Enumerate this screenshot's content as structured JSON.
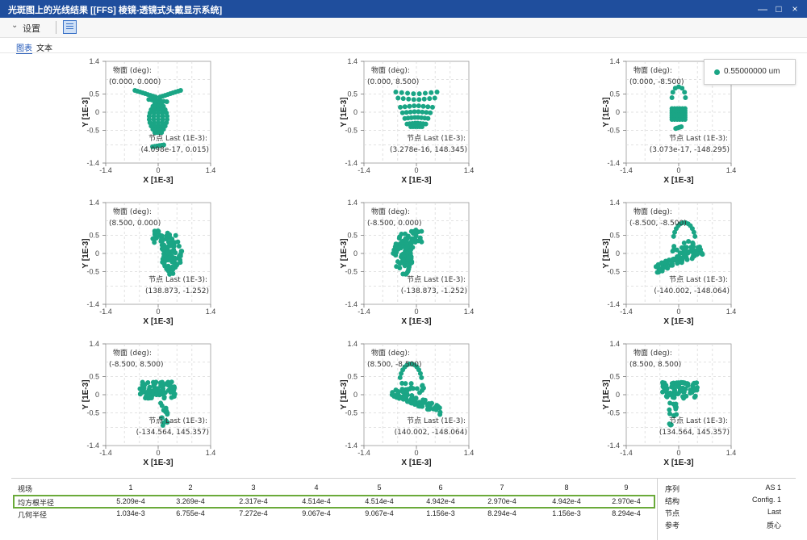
{
  "window": {
    "title": "光斑图上的光线结果 [[FFS] 棱镜-透镜式头戴显示系统]",
    "controls": [
      "—",
      "□",
      "×"
    ]
  },
  "toolbar": {
    "settings_label": "设置"
  },
  "tabs": [
    {
      "label": "图表",
      "active": true
    },
    {
      "label": "文本",
      "active": false
    }
  ],
  "legend": {
    "label": "0.55000000 um",
    "color": "#1aa585"
  },
  "plots": [
    {
      "field_label": "物面 (deg):",
      "field_value": "(0.000, 0.000)",
      "node_label": "节点 Last (1E-3):",
      "node_value": "(4.098e-17, 0.015)",
      "shape": "hourglass"
    },
    {
      "field_label": "物面 (deg):",
      "field_value": "(0.000, 8.500)",
      "node_label": "节点 Last (1E-3):",
      "node_value": "(3.278e-16, 148.345)",
      "shape": "bowl"
    },
    {
      "field_label": "物面 (deg):",
      "field_value": "(0.000, -8.500)",
      "node_label": "节点 Last (1E-3):",
      "node_value": "(3.073e-17, -148.295)",
      "shape": "small"
    },
    {
      "field_label": "物面 (deg):",
      "field_value": "(8.500, 0.000)",
      "node_label": "节点 Last (1E-3):",
      "node_value": "(138.873, -1.252)",
      "shape": "fanright"
    },
    {
      "field_label": "物面 (deg):",
      "field_value": "(-8.500, 0.000)",
      "node_label": "节点 Last (1E-3):",
      "node_value": "(-138.873, -1.252)",
      "shape": "fanleft"
    },
    {
      "field_label": "物面 (deg):",
      "field_value": "(-8.500, -8.500)",
      "node_label": "节点 Last (1E-3):",
      "node_value": "(-140.002, -148.064)",
      "shape": "tailright"
    },
    {
      "field_label": "物面 (deg):",
      "field_value": "(-8.500, 8.500)",
      "node_label": "节点 Last (1E-3):",
      "node_value": "(-134.564, 145.357)",
      "shape": "bushright"
    },
    {
      "field_label": "物面 (deg):",
      "field_value": "(8.500, -8.500)",
      "node_label": "节点 Last (1E-3):",
      "node_value": "(140.002, -148.064)",
      "shape": "tailleft"
    },
    {
      "field_label": "物面 (deg):",
      "field_value": "(8.500, 8.500)",
      "node_label": "节点 Last (1E-3):",
      "node_value": "(134.564, 145.357)",
      "shape": "bushleft"
    }
  ],
  "axes": {
    "xlabel": "X [1E-3]",
    "ylabel": "Y [1E-3]",
    "xticks": [
      "-1.4",
      "0",
      "1.4"
    ],
    "yticks": [
      "1.4",
      "0.5",
      "0",
      "-0.5",
      "-1.4"
    ]
  },
  "stats": {
    "header": {
      "label": "视场",
      "values": [
        "1",
        "2",
        "3",
        "4",
        "5",
        "6",
        "7",
        "8",
        "9"
      ]
    },
    "rms": {
      "label": "均方根半径",
      "values": [
        "5.209e-4",
        "3.269e-4",
        "2.317e-4",
        "4.514e-4",
        "4.514e-4",
        "4.942e-4",
        "2.970e-4",
        "4.942e-4",
        "2.970e-4"
      ]
    },
    "geo": {
      "label": "几何半径",
      "values": [
        "1.034e-3",
        "6.755e-4",
        "7.272e-4",
        "9.067e-4",
        "9.067e-4",
        "1.156e-3",
        "8.294e-4",
        "1.156e-3",
        "8.294e-4"
      ]
    }
  },
  "info": [
    {
      "key": "序列",
      "value": "AS 1"
    },
    {
      "key": "结构",
      "value": "Config. 1"
    },
    {
      "key": "节点",
      "value": "Last"
    },
    {
      "key": "参考",
      "value": "质心"
    }
  ]
}
